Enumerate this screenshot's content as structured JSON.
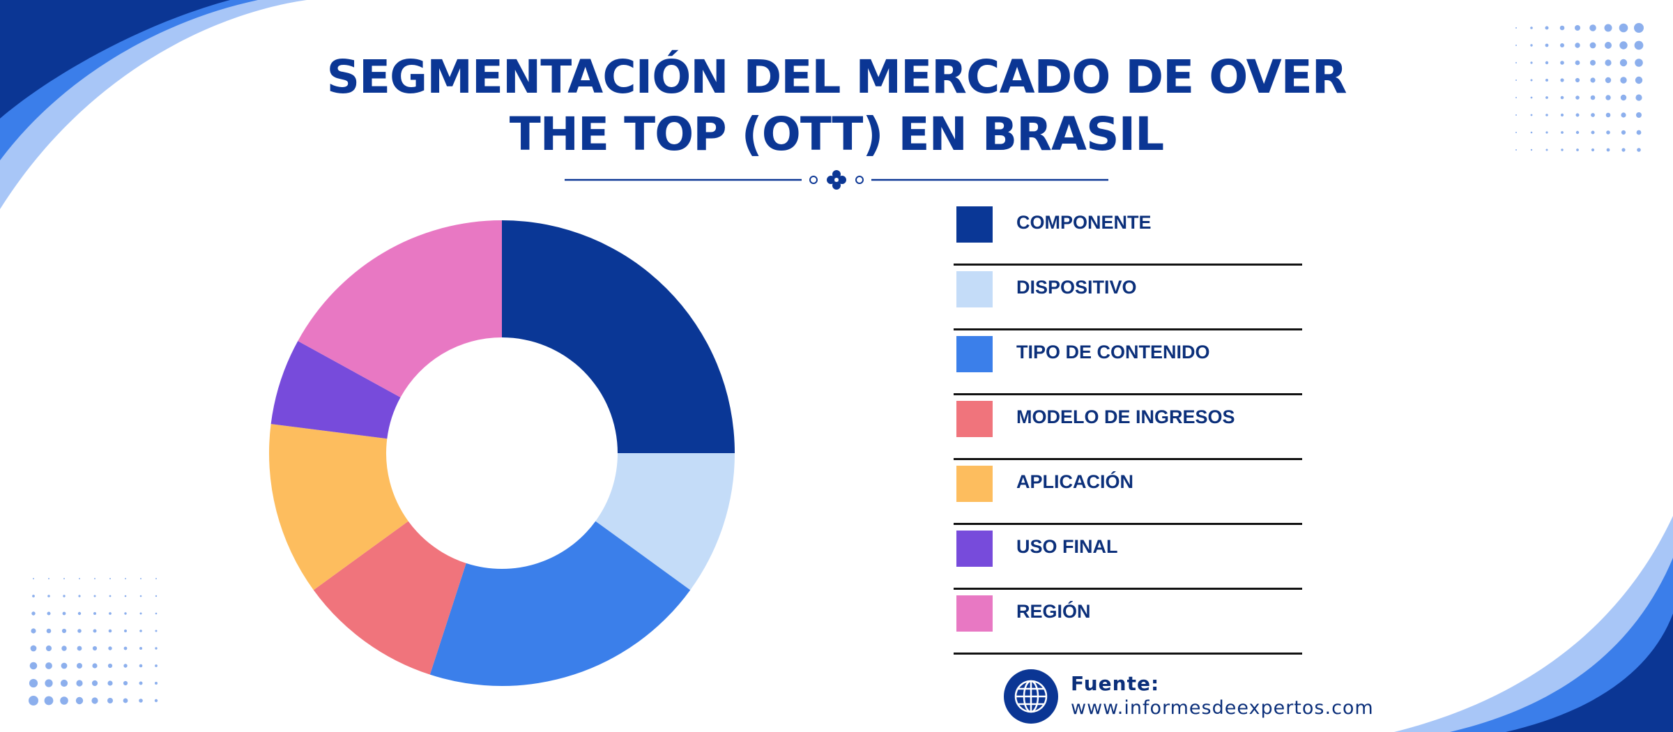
{
  "title": "SEGMENTACIÓN DEL MERCADO DE OVER THE TOP (OTT) EN BRASIL",
  "source": {
    "label": "Fuente:",
    "url": "www.informesdeexpertos.com",
    "icon": "globe-icon"
  },
  "colors": {
    "title": "#0b3694",
    "accent_dark": "#0b3694",
    "accent_mid": "#3b7eea",
    "accent_light": "#a8c6f7"
  },
  "chart_data": {
    "type": "pie",
    "donut": true,
    "title": "SEGMENTACIÓN DEL MERCADO DE OVER THE TOP (OTT) EN BRASIL",
    "legend_position": "right",
    "categories": [
      "COMPONENTE",
      "DISPOSITIVO",
      "TIPO DE CONTENIDO",
      "MODELO DE INGRESOS",
      "APLICACIÓN",
      "USO FINAL",
      "REGIÓN"
    ],
    "values": [
      25,
      10,
      20,
      10,
      12,
      6,
      17
    ],
    "colors": [
      "#0a3796",
      "#c4dcf8",
      "#3b7fea",
      "#f0747c",
      "#fdbd5e",
      "#774bdb",
      "#e878c3"
    ]
  }
}
